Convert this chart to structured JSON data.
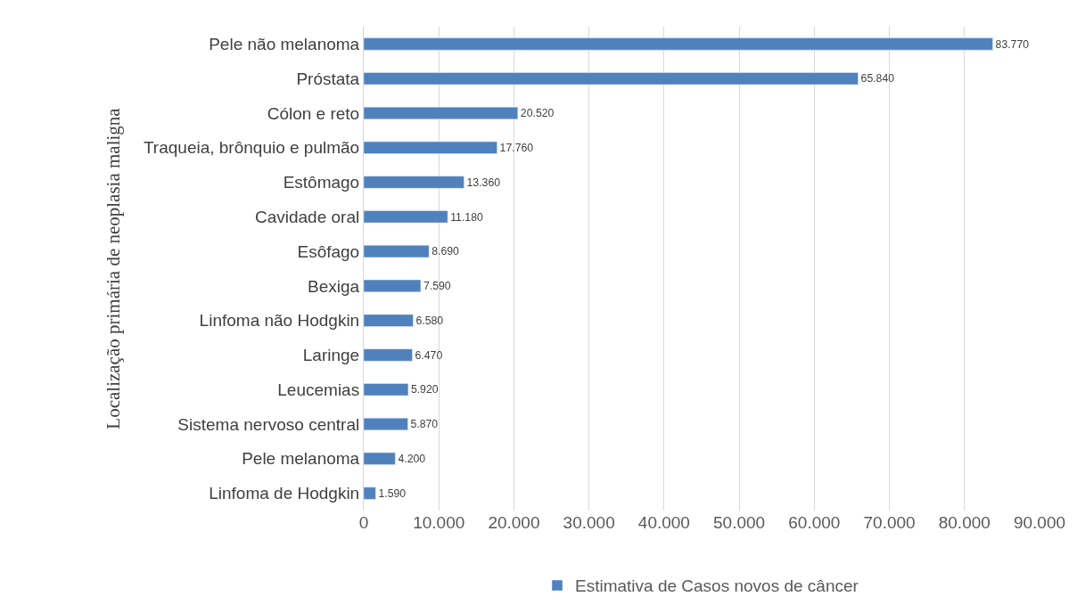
{
  "chart_data": {
    "type": "bar",
    "orientation": "horizontal",
    "ylabel": "Localização primária de neoplasia maligna",
    "categories": [
      "Pele não melanoma",
      "Próstata",
      "Cólon e reto",
      "Traqueia, brônquio e pulmão",
      "Estômago",
      "Cavidade oral",
      "Esôfago",
      "Bexiga",
      "Linfoma não Hodgkin",
      "Laringe",
      "Leucemias",
      "Sistema nervoso central",
      "Pele melanoma",
      "Linfoma de Hodgkin"
    ],
    "series": [
      {
        "name": "Estimativa de Casos novos de câncer",
        "color": "#4f81bd",
        "values": [
          83770,
          65840,
          20520,
          17760,
          13360,
          11180,
          8690,
          7590,
          6580,
          6470,
          5920,
          5870,
          4200,
          1590
        ],
        "value_labels": [
          "83.770",
          "65.840",
          "20.520",
          "17.760",
          "13.360",
          "11.180",
          "8.690",
          "7.590",
          "6.580",
          "6.470",
          "5.920",
          "5.870",
          "4.200",
          "1.590"
        ]
      }
    ],
    "xlim": [
      0,
      90000
    ],
    "xticks": [
      0,
      {
        "value": 10000,
        "label": "10.000"
      },
      {
        "value": 20000,
        "label": "20.000"
      },
      {
        "value": 30000,
        "label": "30.000"
      },
      {
        "value": 40000,
        "label": "40.000"
      },
      {
        "value": 50000,
        "label": "50.000"
      },
      {
        "value": 60000,
        "label": "60.000"
      },
      {
        "value": 70000,
        "label": "70.000"
      },
      {
        "value": 80000,
        "label": "80.000"
      },
      {
        "value": 90000,
        "label": "90.000"
      }
    ],
    "grid": "x",
    "legend": "bottom"
  }
}
